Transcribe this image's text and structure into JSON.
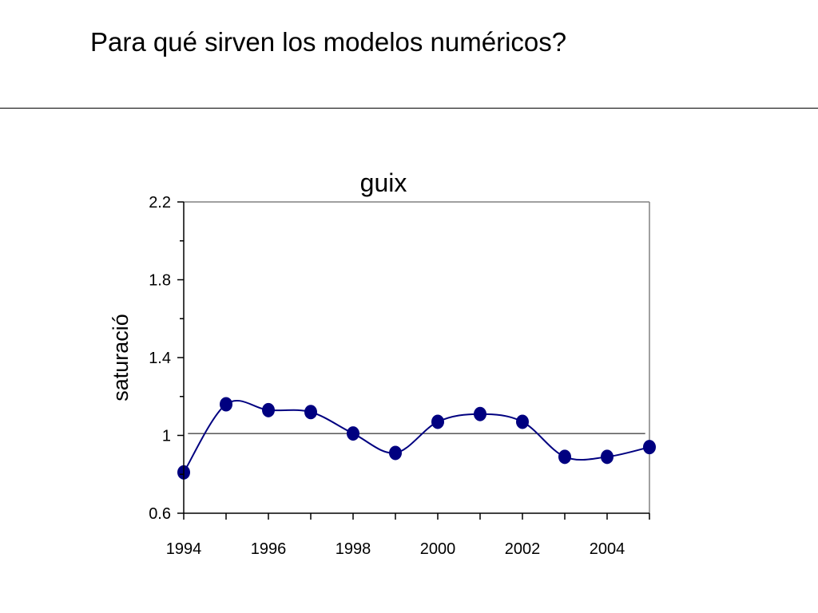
{
  "slide": {
    "title": "Para qué sirven los modelos numéricos?"
  },
  "colors": {
    "series": "#000080",
    "axis": "#000000",
    "plot_border": "#808080",
    "reference_line": "#000000"
  },
  "chart_data": {
    "type": "line",
    "title": "guix",
    "xlabel": "",
    "ylabel": "saturació",
    "xlim": [
      1994,
      2005
    ],
    "ylim": [
      0.6,
      2.2
    ],
    "x_ticks": [
      1994,
      1996,
      1998,
      2000,
      2002,
      2004
    ],
    "x_tick_labels": [
      "1994",
      "1996",
      "1998",
      "2000",
      "2002",
      "2004"
    ],
    "y_ticks": [
      0.6,
      1,
      1.4,
      1.8,
      2.2
    ],
    "y_tick_labels": [
      "0.6",
      "1",
      "1.4",
      "1.8",
      "2.2"
    ],
    "grid": false,
    "smoothed": true,
    "reference_line": {
      "y": 1.01,
      "x_start": 1994.1,
      "x_end": 2004.9
    },
    "series": [
      {
        "x": [
          1994,
          1995,
          1996,
          1997,
          1998,
          1999,
          2000,
          2001,
          2002,
          2003,
          2004,
          2005
        ],
        "values": [
          0.81,
          1.16,
          1.13,
          1.12,
          1.01,
          0.91,
          1.07,
          1.11,
          1.07,
          0.89,
          0.89,
          0.94
        ]
      }
    ]
  }
}
